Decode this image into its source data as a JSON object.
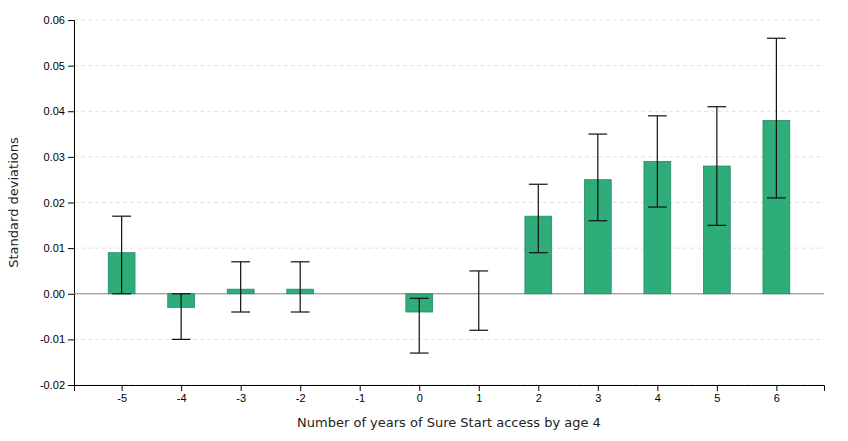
{
  "chart_data": {
    "type": "bar",
    "x": [
      -5,
      -4,
      -3,
      -2,
      -1,
      0,
      1,
      2,
      3,
      4,
      5,
      6
    ],
    "values": [
      0.009,
      -0.003,
      0.001,
      0.001,
      null,
      -0.004,
      null,
      0.017,
      0.025,
      0.029,
      0.028,
      0.038
    ],
    "err_low": [
      0.009,
      0.007,
      0.005,
      0.005,
      null,
      0.009,
      0.008,
      0.008,
      0.009,
      0.01,
      0.013,
      0.017
    ],
    "err_high": [
      0.008,
      0.003,
      0.006,
      0.006,
      null,
      0.003,
      0.005,
      0.007,
      0.01,
      0.01,
      0.013,
      0.018
    ],
    "color": "#2EAD7A",
    "xlabel": "Number of years of Sure Start access by age 4",
    "ylabel": "Standard deviations",
    "xlim": [
      -5.8,
      6.8
    ],
    "xticks": [
      -5,
      -4,
      -3,
      -2,
      -1,
      0,
      1,
      2,
      3,
      4,
      5,
      6
    ],
    "ylim": [
      -0.02,
      0.06
    ],
    "yticks": [
      -0.02,
      -0.01,
      {
        "value": 0,
        "label": "0.00"
      },
      0.01,
      0.02,
      0.03,
      0.04,
      0.05,
      0.06
    ],
    "grid": true
  }
}
